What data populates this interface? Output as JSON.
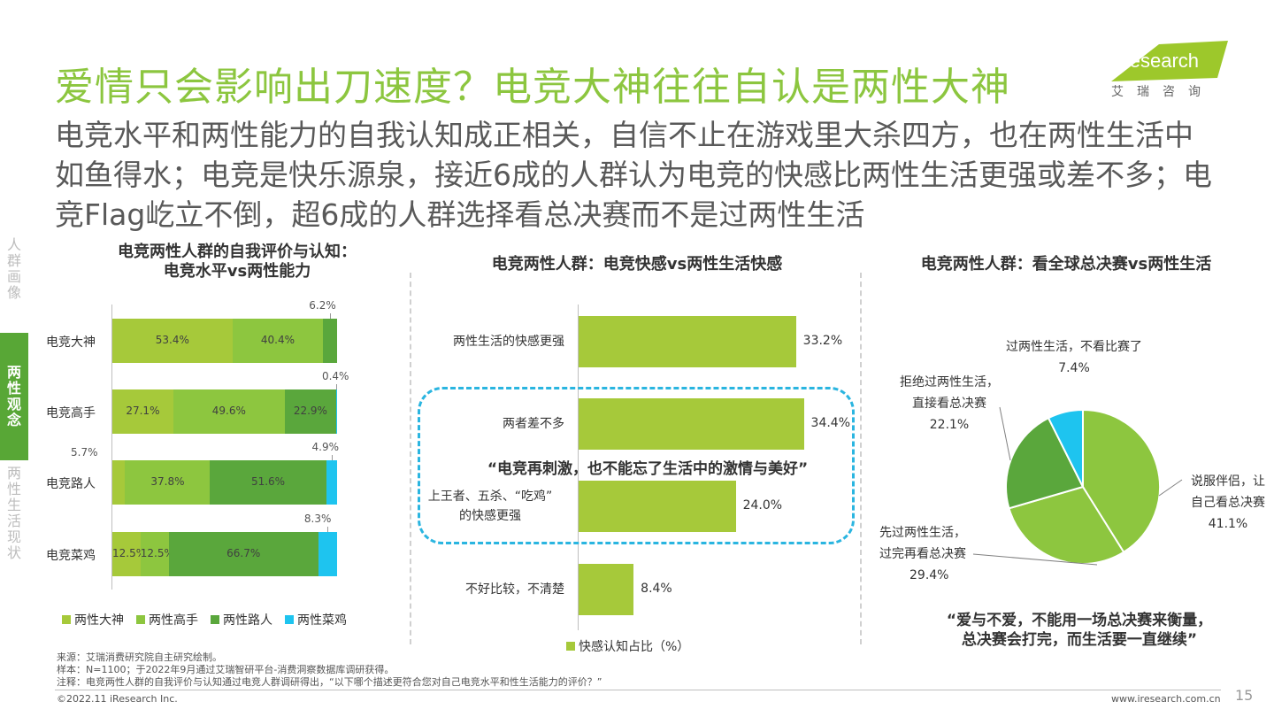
{
  "title": "爱情只会影响出刀速度？电竞大神往往自认是两性大神",
  "subtitle": "电竞水平和两性能力的自我认知成正相关，自信不止在游戏里大杀四方，也在两性生活中如鱼得水；电竞是快乐源泉，接近6成的人群认为电竞的快感比两性生活更强或差不多；电竞Flag屹立不倒，超6成的人群选择看总决赛而不是过两性生活",
  "logo": {
    "text": "iResearch",
    "sub": "艾瑞咨询"
  },
  "sidebar": {
    "top": [
      "人",
      "群",
      "画",
      "像"
    ],
    "active": [
      "两",
      "性",
      "观",
      "念"
    ],
    "bottom": [
      "两",
      "性",
      "生",
      "活",
      "现",
      "状"
    ]
  },
  "colors": {
    "lime": "#a6c93a",
    "light_green": "#8dc63f",
    "green": "#5aa73c",
    "cyan": "#1ec4ef",
    "title_green": "#8cc63f"
  },
  "chart_data": [
    {
      "type": "bar",
      "orientation": "horizontal",
      "stacked": true,
      "title_line1": "电竞两性人群的自我评价与认知：",
      "title_line2": "电竞水平vs两性能力",
      "categories": [
        "电竞大神",
        "电竞高手",
        "电竞路人",
        "电竞菜鸡"
      ],
      "series": [
        {
          "name": "两性大神",
          "color": "#a6c93a",
          "values": [
            53.4,
            27.1,
            5.7,
            12.5
          ],
          "labels": [
            "53.4%",
            "27.1%",
            "5.7%",
            "12.5%"
          ]
        },
        {
          "name": "两性高手",
          "color": "#8dc63f",
          "values": [
            40.4,
            49.6,
            37.8,
            12.5
          ],
          "labels": [
            "40.4%",
            "49.6%",
            "37.8%",
            "12.5%"
          ]
        },
        {
          "name": "两性路人",
          "color": "#5aa73c",
          "values": [
            6.2,
            22.9,
            51.6,
            66.7
          ],
          "labels": [
            "6.2%",
            "22.9%",
            "51.6%",
            "66.7%"
          ]
        },
        {
          "name": "两性菜鸡",
          "color": "#1ec4ef",
          "values": [
            0.0,
            0.4,
            4.9,
            8.3
          ],
          "labels": [
            "",
            "0.4%",
            "4.9%",
            "8.3%"
          ]
        }
      ]
    },
    {
      "type": "bar",
      "orientation": "horizontal",
      "title": "电竞两性人群：电竞快感vs两性生活快感",
      "categories": [
        "两性生活的快感更强",
        "两者差不多",
        "上王者、五杀、“吃鸡”的快感更强",
        "不好比较，不清楚"
      ],
      "category_lines": [
        [
          "两性生活的快感更强"
        ],
        [
          "两者差不多"
        ],
        [
          "上王者、五杀、“吃鸡”",
          "的快感更强"
        ],
        [
          "不好比较，不清楚"
        ]
      ],
      "values": [
        33.2,
        34.4,
        24.0,
        8.4
      ],
      "value_labels": [
        "33.2%",
        "34.4%",
        "24.0%",
        "8.4%"
      ],
      "legend": "快感认知占比（%）",
      "quote": "“电竞再刺激，也不能忘了生活中的激情与美好”"
    },
    {
      "type": "pie",
      "title": "电竞两性人群：看全球总决赛vs两性生活",
      "slices": [
        {
          "label_lines": [
            "说服伴侣，让",
            "自己看总决赛"
          ],
          "value": 41.1,
          "value_label": "41.1%",
          "color": "#8dc63f"
        },
        {
          "label_lines": [
            "先过两性生活，",
            "过完再看总决赛"
          ],
          "value": 29.4,
          "value_label": "29.4%",
          "color": "#8dc63f"
        },
        {
          "label_lines": [
            "拒绝过两性生活，",
            "直接看总决赛"
          ],
          "value": 22.1,
          "value_label": "22.1%",
          "color": "#5aa73c"
        },
        {
          "label_lines": [
            "过两性生活，不看比赛了"
          ],
          "value": 7.4,
          "value_label": "7.4%",
          "color": "#1ec4ef"
        }
      ],
      "quote_line1": "“爱与不爱，不能用一场总决赛来衡量，",
      "quote_line2": "总决赛会打完，而生活要一直继续”"
    }
  ],
  "footer": {
    "source": "来源：艾瑞消费研究院自主研究绘制。",
    "sample": "样本：N=1100；于2022年9月通过艾瑞智研平台-消费洞察数据库调研获得。",
    "note": "注释：电竞两性人群的自我评价与认知通过电竞人群调研得出，“以下哪个描述更符合您对自己电竞水平和性生活能力的评价？”",
    "copyright": "©2022.11 iResearch Inc.",
    "url": "www.iresearch.com.cn",
    "page": "15"
  }
}
